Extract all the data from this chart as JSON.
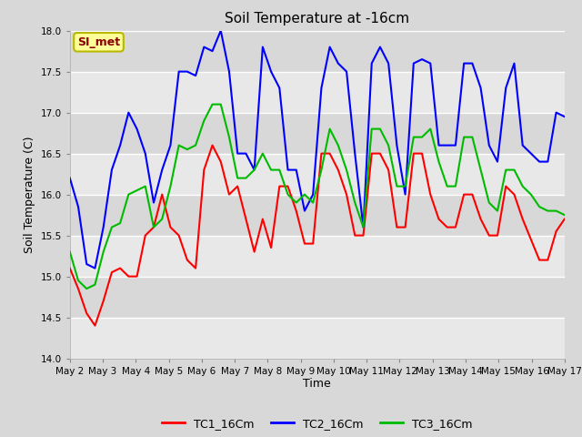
{
  "title": "Soil Temperature at -16cm",
  "xlabel": "Time",
  "ylabel": "Soil Temperature (C)",
  "ylim": [
    14.0,
    18.0
  ],
  "yticks": [
    14.0,
    14.5,
    15.0,
    15.5,
    16.0,
    16.5,
    17.0,
    17.5,
    18.0
  ],
  "x_labels": [
    "May 2",
    "May 3",
    "May 4",
    "May 5",
    "May 6",
    "May 7",
    "May 8",
    "May 9",
    "May 10",
    "May 11",
    "May 12",
    "May 13",
    "May 14",
    "May 15",
    "May 16",
    "May 17"
  ],
  "annotation_text": "SI_met",
  "annotation_bg": "#FFFF99",
  "annotation_border": "#B8B800",
  "fig_bg": "#D8D8D8",
  "plot_bg_light": "#E8E8E8",
  "plot_bg_dark": "#D8D8D8",
  "grid_color": "#FFFFFF",
  "line_colors": [
    "#FF0000",
    "#0000FF",
    "#00BB00"
  ],
  "line_width": 1.5,
  "legend_labels": [
    "TC1_16Cm",
    "TC2_16Cm",
    "TC3_16Cm"
  ],
  "TC1_16Cm": [
    15.1,
    14.85,
    14.55,
    14.4,
    14.7,
    15.05,
    15.1,
    15.0,
    15.0,
    15.5,
    15.6,
    16.0,
    15.6,
    15.5,
    15.2,
    15.1,
    16.3,
    16.6,
    16.4,
    16.0,
    16.1,
    15.7,
    15.3,
    15.7,
    15.35,
    16.1,
    16.1,
    15.8,
    15.4,
    15.4,
    16.5,
    16.5,
    16.3,
    16.0,
    15.5,
    15.5,
    16.5,
    16.5,
    16.3,
    15.6,
    15.6,
    16.5,
    16.5,
    16.0,
    15.7,
    15.6,
    15.6,
    16.0,
    16.0,
    15.7,
    15.5,
    15.5,
    16.1,
    16.0,
    15.7,
    15.45,
    15.2,
    15.2,
    15.55,
    15.7
  ],
  "TC2_16Cm": [
    16.2,
    15.85,
    15.15,
    15.1,
    15.6,
    16.3,
    16.6,
    17.0,
    16.8,
    16.5,
    15.9,
    16.3,
    16.6,
    17.5,
    17.5,
    17.45,
    17.8,
    17.75,
    18.0,
    17.5,
    16.5,
    16.5,
    16.3,
    17.8,
    17.5,
    17.3,
    16.3,
    16.3,
    15.8,
    16.0,
    17.3,
    17.8,
    17.6,
    17.5,
    16.5,
    15.6,
    17.6,
    17.8,
    17.6,
    16.6,
    16.0,
    17.6,
    17.65,
    17.6,
    16.6,
    16.6,
    16.6,
    17.6,
    17.6,
    17.3,
    16.6,
    16.4,
    17.3,
    17.6,
    16.6,
    16.5,
    16.4,
    16.4,
    17.0,
    16.95
  ],
  "TC3_16Cm": [
    15.3,
    14.95,
    14.85,
    14.9,
    15.3,
    15.6,
    15.65,
    16.0,
    16.05,
    16.1,
    15.6,
    15.7,
    16.1,
    16.6,
    16.55,
    16.6,
    16.9,
    17.1,
    17.1,
    16.7,
    16.2,
    16.2,
    16.3,
    16.5,
    16.3,
    16.3,
    16.0,
    15.9,
    16.0,
    15.9,
    16.3,
    16.8,
    16.6,
    16.3,
    15.9,
    15.6,
    16.8,
    16.8,
    16.6,
    16.1,
    16.1,
    16.7,
    16.7,
    16.8,
    16.4,
    16.1,
    16.1,
    16.7,
    16.7,
    16.3,
    15.9,
    15.8,
    16.3,
    16.3,
    16.1,
    16.0,
    15.85,
    15.8,
    15.8,
    15.75
  ]
}
